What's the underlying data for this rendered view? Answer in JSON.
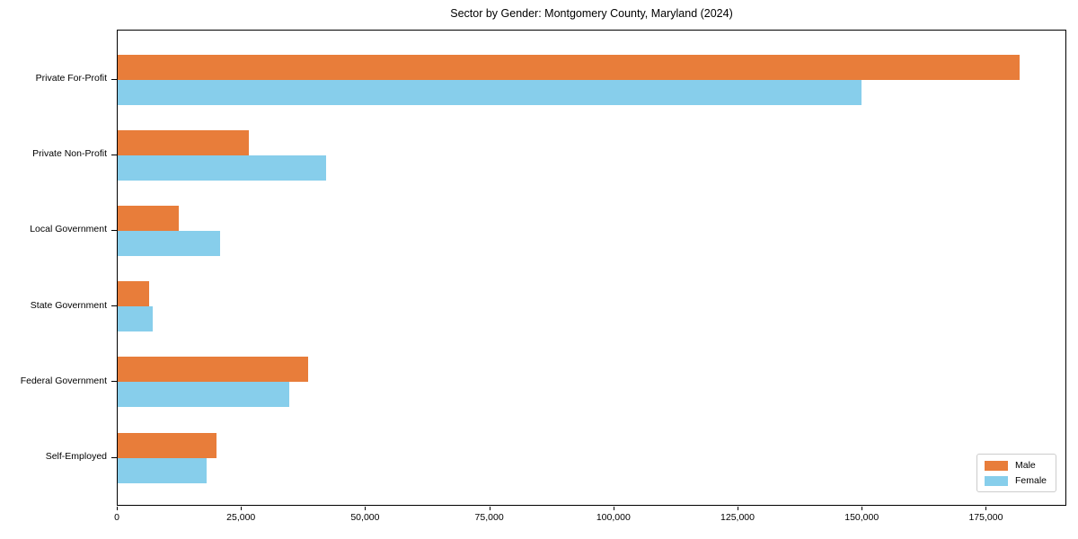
{
  "chart_data": {
    "type": "bar",
    "orientation": "horizontal",
    "title": "Sector by Gender: Montgomery County, Maryland (2024)",
    "categories": [
      "Private For-Profit",
      "Private Non-Profit",
      "Local Government",
      "State Government",
      "Federal Government",
      "Self-Employed"
    ],
    "series": [
      {
        "name": "Male",
        "color": "#e87d3a",
        "values": [
          182000,
          26500,
          12400,
          6400,
          38500,
          20000
        ]
      },
      {
        "name": "Female",
        "color": "#87ceeb",
        "values": [
          150000,
          42000,
          20600,
          7100,
          34600,
          18000
        ]
      }
    ],
    "xlim": [
      0,
      191200
    ],
    "xticks": [
      {
        "value": 0,
        "label": "0"
      },
      {
        "value": 25000,
        "label": "25,000"
      },
      {
        "value": 50000,
        "label": "50,000"
      },
      {
        "value": 75000,
        "label": "75,000"
      },
      {
        "value": 100000,
        "label": "100,000"
      },
      {
        "value": 125000,
        "label": "125,000"
      },
      {
        "value": 150000,
        "label": "150,000"
      },
      {
        "value": 175000,
        "label": "175,000"
      }
    ],
    "xlabel": "",
    "ylabel": "",
    "grid": false,
    "legend": {
      "position": "lower right"
    }
  }
}
